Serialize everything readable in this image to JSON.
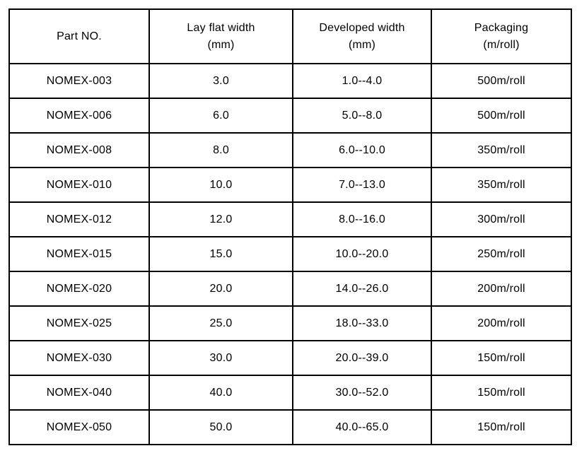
{
  "page": {
    "background": "#ffffff",
    "border_color": "#000000",
    "text_color": "#000000"
  },
  "table": {
    "columns": [
      {
        "id": "part_no",
        "line1": "Part NO."
      },
      {
        "id": "lay_flat_width",
        "line1": "Lay flat width",
        "line2": "(mm)"
      },
      {
        "id": "developed_width",
        "line1": "Developed width",
        "line2": "(mm)"
      },
      {
        "id": "packaging",
        "line1": "Packaging",
        "line2": "(m/roll)"
      }
    ],
    "rows": [
      [
        "NOMEX-003",
        "3.0",
        "1.0--4.0",
        "500m/roll"
      ],
      [
        "NOMEX-006",
        "6.0",
        "5.0--8.0",
        "500m/roll"
      ],
      [
        "NOMEX-008",
        "8.0",
        "6.0--10.0",
        "350m/roll"
      ],
      [
        "NOMEX-010",
        "10.0",
        "7.0--13.0",
        "350m/roll"
      ],
      [
        "NOMEX-012",
        "12.0",
        "8.0--16.0",
        "300m/roll"
      ],
      [
        "NOMEX-015",
        "15.0",
        "10.0--20.0",
        "250m/roll"
      ],
      [
        "NOMEX-020",
        "20.0",
        "14.0--26.0",
        "200m/roll"
      ],
      [
        "NOMEX-025",
        "25.0",
        "18.0--33.0",
        "200m/roll"
      ],
      [
        "NOMEX-030",
        "30.0",
        "20.0--39.0",
        "150m/roll"
      ],
      [
        "NOMEX-040",
        "40.0",
        "30.0--52.0",
        "150m/roll"
      ],
      [
        "NOMEX-050",
        "50.0",
        "40.0--65.0",
        "150m/roll"
      ]
    ]
  }
}
